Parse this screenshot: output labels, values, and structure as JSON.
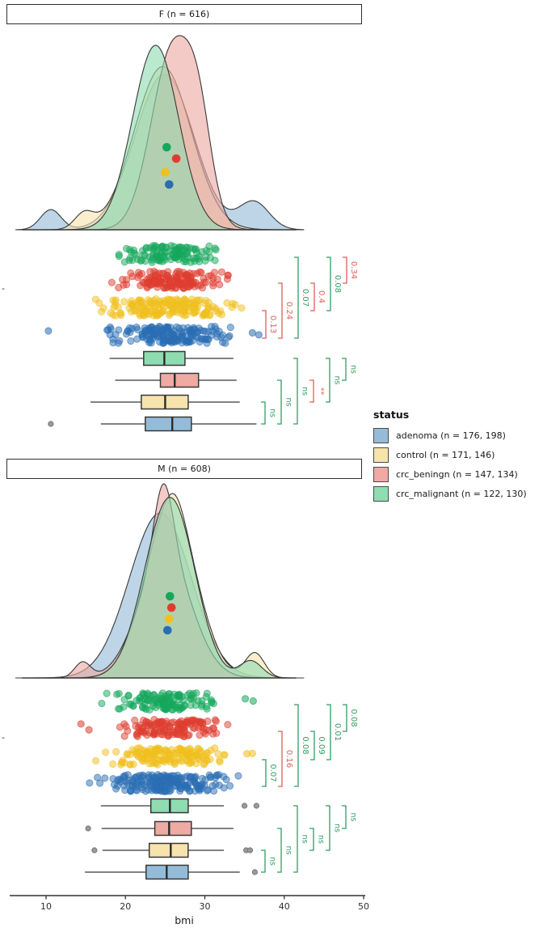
{
  "chart_data": {
    "type": "raincloud",
    "title": "",
    "xlabel": "bmi",
    "x_ticks": [
      10,
      20,
      30,
      40,
      50
    ],
    "xlim": [
      6.2,
      42.5
    ],
    "grid": false,
    "legend_position": "right",
    "group_order_top_to_bottom": [
      "crc_malignant",
      "crc_beningn",
      "control",
      "adenoma"
    ],
    "colors": {
      "pastel": {
        "adenoma": "#94bcd8",
        "control": "#f7e3ac",
        "crc_beningn": "#eeaaa3",
        "crc_malignant": "#90dcb2"
      },
      "strong": {
        "adenoma": "#2a6db3",
        "control": "#f0c01e",
        "crc_beningn": "#de3d30",
        "crc_malignant": "#16a75c"
      },
      "sig_green": "#2f9e62",
      "sig_red": "#dd5f57",
      "outline": "#383838",
      "outlier_gray": "#9a9a9a"
    },
    "legend": {
      "title": "status",
      "items": [
        {
          "label": "adenoma (n = 176, 198)",
          "color": "#94bcd8"
        },
        {
          "label": "control (n = 171, 146)",
          "color": "#f7e3ac"
        },
        {
          "label": "crc_beningn (n = 147, 134)",
          "color": "#eeaaa3"
        },
        {
          "label": "crc_malignant (n = 122, 130)",
          "color": "#90dcb2"
        }
      ]
    },
    "facets": [
      {
        "label": "F (n = 616)",
        "y_tick_label": "-",
        "groups": {
          "crc_malignant": {
            "mean": 25.2,
            "jitter": {
              "n": 122,
              "mean": 25.2,
              "sd": 3.1,
              "min": 17.6,
              "max": 33.2,
              "extras": []
            },
            "box": {
              "lo": 18.0,
              "q1": 22.3,
              "med": 24.9,
              "q3": 27.5,
              "hi": 33.6,
              "outliers": []
            },
            "density": {
              "peak": 0.95,
              "components": [
                {
                  "mu": 23.8,
                  "sd": 2.9,
                  "w": 1
                }
              ]
            }
          },
          "crc_beningn": {
            "mean": 26.4,
            "jitter": {
              "n": 147,
              "mean": 26.3,
              "sd": 3.2,
              "min": 18.2,
              "max": 34.2,
              "extras": []
            },
            "box": {
              "lo": 18.7,
              "q1": 24.4,
              "med": 26.2,
              "q3": 29.2,
              "hi": 34.0,
              "outliers": []
            },
            "density": {
              "peak": 1.0,
              "components": [
                {
                  "mu": 26.0,
                  "sd": 2.7,
                  "w": 0.82
                },
                {
                  "mu": 29.3,
                  "sd": 1.6,
                  "w": 0.18
                }
              ]
            }
          },
          "control": {
            "mean": 25.0,
            "jitter": {
              "n": 171,
              "mean": 25.0,
              "sd": 3.7,
              "min": 14.9,
              "max": 34.7,
              "extras": []
            },
            "box": {
              "lo": 15.6,
              "q1": 22.0,
              "med": 25.0,
              "q3": 27.9,
              "hi": 34.4,
              "outliers": []
            },
            "density": {
              "peak": 0.84,
              "components": [
                {
                  "mu": 24.7,
                  "sd": 3.6,
                  "w": 0.97
                },
                {
                  "mu": 14.8,
                  "sd": 1.2,
                  "w": 0.03
                }
              ]
            }
          },
          "adenoma": {
            "mean": 25.5,
            "jitter": {
              "n": 176,
              "mean": 25.5,
              "sd": 3.7,
              "min": 16.6,
              "max": 33.5,
              "extras": [
                10.3,
                36.0,
                36.8
              ]
            },
            "box": {
              "lo": 16.9,
              "q1": 22.5,
              "med": 25.9,
              "q3": 28.3,
              "hi": 36.5,
              "outliers": [
                10.6
              ]
            },
            "density": {
              "peak": 0.8,
              "components": [
                {
                  "mu": 24.9,
                  "sd": 3.7,
                  "w": 0.88
                },
                {
                  "mu": 10.6,
                  "sd": 1.3,
                  "w": 0.04
                },
                {
                  "mu": 36.2,
                  "sd": 1.9,
                  "w": 0.08
                }
              ]
            }
          }
        },
        "jitter_comparisons": [
          {
            "a": "control",
            "b": "adenoma",
            "label": "0.13",
            "sig": "red"
          },
          {
            "a": "crc_beningn",
            "b": "adenoma",
            "label": "0.24",
            "sig": "red"
          },
          {
            "a": "crc_malignant",
            "b": "adenoma",
            "label": "0.07",
            "sig": "green"
          },
          {
            "a": "crc_beningn",
            "b": "control",
            "label": "0.4",
            "sig": "red"
          },
          {
            "a": "crc_malignant",
            "b": "control",
            "label": "0.08",
            "sig": "green"
          },
          {
            "a": "crc_malignant",
            "b": "crc_beningn",
            "label": "0.34",
            "sig": "red"
          }
        ],
        "box_comparisons": [
          {
            "a": "control",
            "b": "adenoma",
            "label": "ns",
            "sig": "green"
          },
          {
            "a": "crc_beningn",
            "b": "adenoma",
            "label": "ns",
            "sig": "green"
          },
          {
            "a": "crc_malignant",
            "b": "adenoma",
            "label": "ns",
            "sig": "green"
          },
          {
            "a": "crc_beningn",
            "b": "control",
            "label": "**",
            "sig": "red"
          },
          {
            "a": "crc_malignant",
            "b": "control",
            "label": "ns",
            "sig": "green"
          },
          {
            "a": "crc_malignant",
            "b": "crc_beningn",
            "label": "ns",
            "sig": "green"
          }
        ]
      },
      {
        "label": "M (n = 608)",
        "y_tick_label": "-",
        "groups": {
          "crc_malignant": {
            "mean": 25.6,
            "jitter": {
              "n": 130,
              "mean": 25.5,
              "sd": 3.0,
              "min": 16.4,
              "max": 31.2,
              "extras": [
                35.1,
                36.1
              ]
            },
            "box": {
              "lo": 16.9,
              "q1": 23.2,
              "med": 25.6,
              "q3": 27.9,
              "hi": 32.4,
              "outliers": [
                35.0,
                36.5
              ]
            },
            "density": {
              "peak": 0.93,
              "components": [
                {
                  "mu": 24.2,
                  "sd": 2.8,
                  "w": 0.48
                },
                {
                  "mu": 26.9,
                  "sd": 2.7,
                  "w": 0.46
                },
                {
                  "mu": 35.8,
                  "sd": 1.4,
                  "w": 0.04
                }
              ]
            }
          },
          "crc_beningn": {
            "mean": 25.8,
            "jitter": {
              "n": 134,
              "mean": 25.7,
              "sd": 3.3,
              "min": 19.2,
              "max": 33.7,
              "extras": [
                14.4,
                15.4
              ]
            },
            "box": {
              "lo": 17.0,
              "q1": 23.7,
              "med": 25.5,
              "q3": 28.3,
              "hi": 33.6,
              "outliers": [
                15.3
              ]
            },
            "density": {
              "peak": 1.0,
              "components": [
                {
                  "mu": 25.0,
                  "sd": 3.3,
                  "w": 0.78
                },
                {
                  "mu": 24.8,
                  "sd": 1.2,
                  "w": 0.17
                },
                {
                  "mu": 14.6,
                  "sd": 1.0,
                  "w": 0.03
                }
              ]
            }
          },
          "control": {
            "mean": 25.5,
            "jitter": {
              "n": 146,
              "mean": 25.5,
              "sd": 3.4,
              "min": 14.9,
              "max": 33.0,
              "extras": [
                35.3,
                36.0
              ]
            },
            "box": {
              "lo": 17.1,
              "q1": 23.0,
              "med": 25.7,
              "q3": 27.9,
              "hi": 32.4,
              "outliers": [
                16.1,
                35.2,
                35.7
              ]
            },
            "density": {
              "peak": 0.95,
              "components": [
                {
                  "mu": 25.7,
                  "sd": 3.2,
                  "w": 0.92
                },
                {
                  "mu": 26.3,
                  "sd": 1.2,
                  "w": 0.03
                },
                {
                  "mu": 36.3,
                  "sd": 1.2,
                  "w": 0.05
                }
              ]
            }
          },
          "adenoma": {
            "mean": 25.3,
            "jitter": {
              "n": 198,
              "mean": 25.2,
              "sd": 3.8,
              "min": 14.6,
              "max": 35.1,
              "extras": []
            },
            "box": {
              "lo": 14.9,
              "q1": 22.6,
              "med": 25.2,
              "q3": 27.9,
              "hi": 34.4,
              "outliers": [
                36.3
              ]
            },
            "density": {
              "peak": 0.85,
              "components": [
                {
                  "mu": 24.4,
                  "sd": 3.9,
                  "w": 1
                }
              ]
            }
          }
        },
        "jitter_comparisons": [
          {
            "a": "control",
            "b": "adenoma",
            "label": "0.07",
            "sig": "green"
          },
          {
            "a": "crc_beningn",
            "b": "adenoma",
            "label": "0.16",
            "sig": "red"
          },
          {
            "a": "crc_malignant",
            "b": "adenoma",
            "label": "0.08",
            "sig": "green"
          },
          {
            "a": "crc_beningn",
            "b": "control",
            "label": "0.09",
            "sig": "green"
          },
          {
            "a": "crc_malignant",
            "b": "control",
            "label": "0.01",
            "sig": "green"
          },
          {
            "a": "crc_malignant",
            "b": "crc_beningn",
            "label": "0.08",
            "sig": "green"
          }
        ],
        "box_comparisons": [
          {
            "a": "control",
            "b": "adenoma",
            "label": "ns",
            "sig": "green"
          },
          {
            "a": "crc_beningn",
            "b": "adenoma",
            "label": "ns",
            "sig": "green"
          },
          {
            "a": "crc_malignant",
            "b": "adenoma",
            "label": "ns",
            "sig": "green"
          },
          {
            "a": "crc_beningn",
            "b": "control",
            "label": "ns",
            "sig": "green"
          },
          {
            "a": "crc_malignant",
            "b": "control",
            "label": "ns",
            "sig": "green"
          },
          {
            "a": "crc_malignant",
            "b": "crc_beningn",
            "label": "ns",
            "sig": "green"
          }
        ]
      }
    ]
  }
}
